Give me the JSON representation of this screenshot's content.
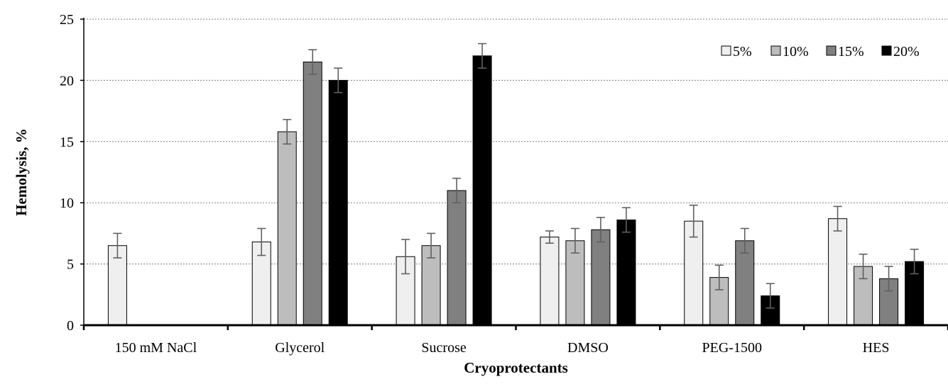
{
  "chart_data": {
    "type": "bar",
    "title": "",
    "xlabel": "Cryoprotectants",
    "ylabel": "Hemolysis, %",
    "ylim": [
      0,
      25
    ],
    "yticks": [
      "0",
      "5",
      "10",
      "15",
      "20",
      "25"
    ],
    "grid": true,
    "legend_position": "top-right",
    "categories": [
      "150 mM NaCl",
      "Glycerol",
      "Sucrose",
      "DMSO",
      "PEG-1500",
      "HES"
    ],
    "series": [
      {
        "name": "5%",
        "color": "#efefef",
        "values": [
          6.5,
          6.8,
          5.6,
          7.2,
          8.5,
          8.7
        ],
        "errors": [
          1.0,
          1.1,
          1.4,
          0.5,
          1.3,
          1.0
        ]
      },
      {
        "name": "10%",
        "color": "#bdbdbd",
        "values": [
          null,
          15.8,
          6.5,
          6.9,
          3.9,
          4.8
        ],
        "errors": [
          null,
          1.0,
          1.0,
          1.0,
          1.0,
          1.0
        ]
      },
      {
        "name": "15%",
        "color": "#808080",
        "values": [
          null,
          21.5,
          11.0,
          7.8,
          6.9,
          3.8
        ],
        "errors": [
          null,
          1.0,
          1.0,
          1.0,
          1.0,
          1.0
        ]
      },
      {
        "name": "20%",
        "color": "#000000",
        "values": [
          null,
          20.0,
          22.0,
          8.6,
          2.4,
          5.2
        ],
        "errors": [
          null,
          1.0,
          1.0,
          1.0,
          1.0,
          1.0
        ]
      }
    ]
  }
}
